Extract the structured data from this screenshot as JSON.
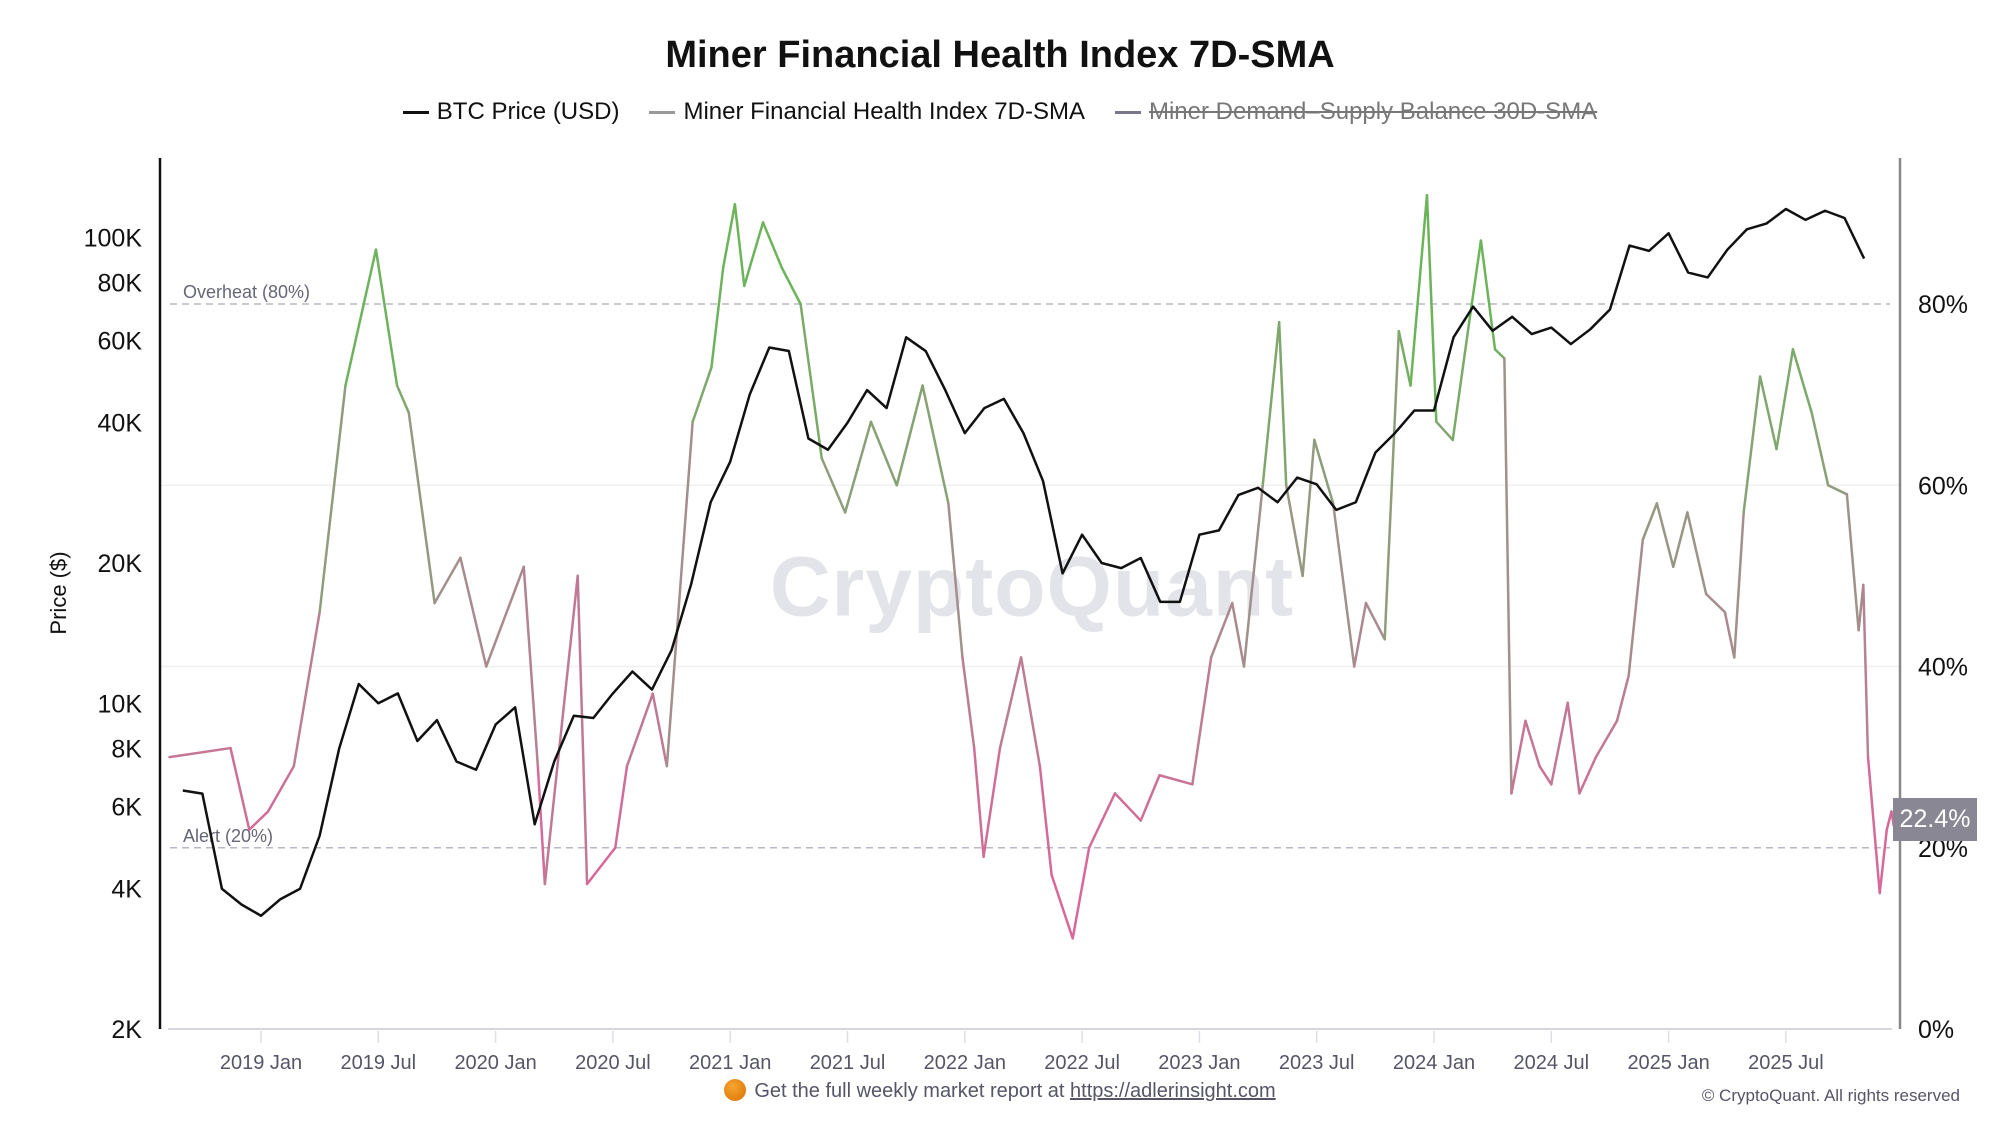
{
  "title": "Miner Financial Health Index 7D-SMA",
  "legend": [
    {
      "label": "BTC Price (USD)",
      "color": "#111111",
      "hidden": false
    },
    {
      "label": "Miner Financial Health Index 7D-SMA",
      "color": "#999999",
      "hidden": false
    },
    {
      "label": "Miner Demand–Supply Balance 30D-SMA",
      "color": "#777788",
      "hidden": true
    }
  ],
  "watermark": "CryptoQuant",
  "badge": "22.4%",
  "footer": {
    "text": "Get the full weekly market report at",
    "link": "https://adlerinsight.com"
  },
  "copyright": "© CryptoQuant. All rights reserved",
  "chart_data": {
    "type": "line",
    "title": "Miner Financial Health Index 7D-SMA",
    "ylabel": "Price ($)",
    "y_left": {
      "scale": "log",
      "range": [
        2000,
        130000
      ],
      "ticks": [
        2000,
        4000,
        6000,
        8000,
        10000,
        20000,
        40000,
        60000,
        80000,
        100000
      ],
      "tick_labels": [
        "2K",
        "4K",
        "6K",
        "8K",
        "10K",
        "20K",
        "40K",
        "60K",
        "80K",
        "100K"
      ]
    },
    "y_right": {
      "range": [
        0,
        100
      ],
      "ticks": [
        0,
        20,
        40,
        60,
        80
      ],
      "tick_labels": [
        "0%",
        "20%",
        "40%",
        "60%",
        "80%"
      ]
    },
    "x_range": [
      2018.6,
      2025.98
    ],
    "x_ticks": [
      2019,
      2019.5,
      2020,
      2020.5,
      2021,
      2021.5,
      2022,
      2022.5,
      2023,
      2023.5,
      2024,
      2024.5,
      2025,
      2025.5
    ],
    "x_tick_labels": [
      "2019 Jan",
      "2019 Jul",
      "2020 Jan",
      "2020 Jul",
      "2021 Jan",
      "2021 Jul",
      "2022 Jan",
      "2022 Jul",
      "2023 Jan",
      "2023 Jul",
      "2024 Jan",
      "2024 Jul",
      "2025 Jan",
      "2025 Jul"
    ],
    "reference_lines": [
      {
        "value": 80,
        "label": "Overheat (80%)"
      },
      {
        "value": 20,
        "label": "Alert (20%)"
      }
    ],
    "grid": true,
    "legend_position": "top-center",
    "series": [
      {
        "name": "BTC Price (USD)",
        "axis": "left",
        "start": "2018-09",
        "interval": "monthly",
        "values": [
          6500,
          6400,
          4000,
          3700,
          3500,
          3800,
          4000,
          5200,
          8000,
          11000,
          10000,
          10500,
          8300,
          9200,
          7500,
          7200,
          9000,
          9800,
          5500,
          7500,
          9400,
          9300,
          10500,
          11700,
          10700,
          13000,
          18000,
          27000,
          33000,
          46000,
          58000,
          57000,
          37000,
          35000,
          40000,
          47000,
          43000,
          61000,
          57000,
          47000,
          38000,
          43000,
          45000,
          38000,
          30000,
          19000,
          23000,
          20000,
          19500,
          20500,
          16500,
          16500,
          23000,
          23500,
          28000,
          29000,
          27000,
          30500,
          29500,
          26000,
          27000,
          34500,
          38000,
          42500,
          42500,
          61000,
          71000,
          63000,
          67500,
          62000,
          64000,
          59000,
          63500,
          70000,
          96000,
          93500,
          102000,
          84000,
          82000,
          94000,
          104000,
          107000,
          115000,
          109000,
          114000,
          110000,
          90000
        ]
      },
      {
        "name": "Miner Financial Health Index 7D-SMA",
        "axis": "right",
        "unit": "%",
        "x": [
          2018.61,
          2018.87,
          2018.95,
          2019.03,
          2019.14,
          2019.25,
          2019.36,
          2019.49,
          2019.58,
          2019.63,
          2019.74,
          2019.85,
          2019.96,
          2020.12,
          2020.18,
          2020.21,
          2020.35,
          2020.39,
          2020.51,
          2020.56,
          2020.67,
          2020.73,
          2020.84,
          2020.92,
          2020.97,
          2021.02,
          2021.06,
          2021.14,
          2021.22,
          2021.3,
          2021.39,
          2021.49,
          2021.6,
          2021.71,
          2021.82,
          2021.93,
          2021.99,
          2022.04,
          2022.08,
          2022.15,
          2022.24,
          2022.32,
          2022.37,
          2022.46,
          2022.53,
          2022.64,
          2022.75,
          2022.83,
          2022.97,
          2023.05,
          2023.14,
          2023.19,
          2023.27,
          2023.34,
          2023.37,
          2023.44,
          2023.49,
          2023.57,
          2023.66,
          2023.71,
          2023.79,
          2023.85,
          2023.9,
          2023.97,
          2024.01,
          2024.08,
          2024.15,
          2024.2,
          2024.26,
          2024.3,
          2024.33,
          2024.39,
          2024.45,
          2024.5,
          2024.57,
          2024.62,
          2024.69,
          2024.78,
          2024.83,
          2024.89,
          2024.95,
          2025.02,
          2025.08,
          2025.16,
          2025.24,
          2025.28,
          2025.32,
          2025.39,
          2025.46,
          2025.53,
          2025.61,
          2025.68,
          2025.76,
          2025.81,
          2025.83,
          2025.85,
          2025.9,
          2025.93,
          2025.95,
          2025.96
        ],
        "values": [
          30,
          31,
          22,
          24,
          29,
          46,
          71,
          86,
          71,
          68,
          47,
          52,
          40,
          51,
          29,
          16,
          50,
          16,
          20,
          29,
          37,
          29,
          67,
          73,
          84,
          91,
          82,
          89,
          84,
          80,
          63,
          57,
          67,
          60,
          71,
          58,
          41,
          31,
          19,
          31,
          41,
          29,
          17,
          10,
          20,
          26,
          23,
          28,
          27,
          41,
          47,
          40,
          60,
          78,
          60,
          50,
          65,
          58,
          40,
          47,
          43,
          77,
          71,
          92,
          67,
          65,
          78,
          87,
          75,
          74,
          26,
          34,
          29,
          27,
          36,
          26,
          30,
          34,
          39,
          54,
          58,
          51,
          57,
          48,
          46,
          41,
          57,
          72,
          64,
          75,
          68,
          60,
          59,
          44,
          49,
          30,
          15,
          22,
          24,
          22.4
        ]
      }
    ]
  }
}
